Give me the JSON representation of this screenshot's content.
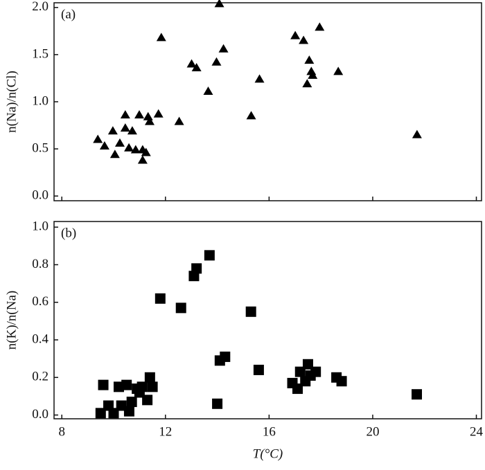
{
  "chart_data": [
    {
      "type": "scatter",
      "panel_label": "(a)",
      "ylabel": "n(Na)/n(Cl)",
      "marker": "triangle",
      "color": "#000000",
      "xlim": [
        7.7,
        24.2
      ],
      "xticks": [
        8,
        12,
        16,
        20,
        24
      ],
      "ylim": [
        -0.05,
        2.05
      ],
      "yticks": [
        {
          "value": 0,
          "label": "0.0"
        },
        {
          "value": 0.5,
          "label": "0.5"
        },
        {
          "value": 1,
          "label": "1.0"
        },
        {
          "value": 1.5,
          "label": "1.5"
        },
        {
          "value": 2,
          "label": "2.0"
        }
      ],
      "x": [
        9.39,
        9.65,
        9.97,
        10.05,
        10.24,
        10.45,
        10.45,
        10.59,
        10.72,
        10.85,
        10.99,
        11.12,
        11.12,
        11.25,
        11.33,
        11.39,
        11.73,
        11.84,
        12.53,
        13.01,
        13.2,
        13.65,
        13.97,
        14.08,
        14.24,
        15.31,
        15.63,
        17.01,
        17.33,
        17.47,
        17.55,
        17.63,
        17.68,
        17.95,
        18.67,
        21.71
      ],
      "values": [
        0.6,
        0.53,
        0.69,
        0.44,
        0.56,
        0.86,
        0.72,
        0.51,
        0.69,
        0.49,
        0.86,
        0.49,
        0.38,
        0.46,
        0.84,
        0.79,
        0.87,
        1.68,
        0.79,
        1.4,
        1.36,
        1.11,
        1.42,
        2.04,
        1.56,
        0.85,
        1.24,
        1.7,
        1.65,
        1.19,
        1.44,
        1.32,
        1.28,
        1.79,
        1.32,
        0.65
      ]
    },
    {
      "type": "scatter",
      "panel_label": "(b)",
      "ylabel": "n(K)/n(Na)",
      "xlabel": "T(°C)",
      "marker": "square",
      "color": "#000000",
      "xlim": [
        7.7,
        24.2
      ],
      "xticks": [
        8,
        12,
        16,
        20,
        24
      ],
      "ylim": [
        -0.02,
        1.03
      ],
      "yticks": [
        {
          "value": 0,
          "label": "0.0"
        },
        {
          "value": 0.2,
          "label": "0.2"
        },
        {
          "value": 0.4,
          "label": "0.4"
        },
        {
          "value": 0.6,
          "label": "0.6"
        },
        {
          "value": 0.8,
          "label": "0.8"
        },
        {
          "value": 1,
          "label": "1.0"
        }
      ],
      "x": [
        9.5,
        9.6,
        9.8,
        10.0,
        10.2,
        10.3,
        10.5,
        10.6,
        10.7,
        10.9,
        11.0,
        11.1,
        11.3,
        11.4,
        11.5,
        11.8,
        12.6,
        13.1,
        13.2,
        13.7,
        14.0,
        14.1,
        14.3,
        15.3,
        15.6,
        16.9,
        17.1,
        17.2,
        17.4,
        17.5,
        17.6,
        17.8,
        18.6,
        18.8,
        21.7
      ],
      "values": [
        0.01,
        0.16,
        0.05,
        0.01,
        0.15,
        0.05,
        0.16,
        0.02,
        0.07,
        0.14,
        0.12,
        0.15,
        0.08,
        0.2,
        0.15,
        0.62,
        0.57,
        0.74,
        0.78,
        0.85,
        0.06,
        0.29,
        0.31,
        0.55,
        0.24,
        0.17,
        0.14,
        0.23,
        0.18,
        0.27,
        0.21,
        0.23,
        0.2,
        0.18,
        0.11
      ]
    }
  ]
}
